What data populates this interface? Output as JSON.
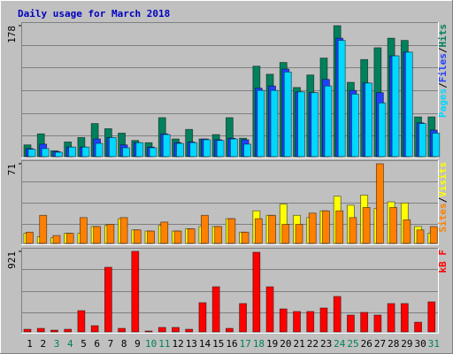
{
  "chart_data": {
    "type": "bar",
    "title": "Daily usage for March 2018",
    "legend_separator": "/",
    "categories": [
      "1",
      "2",
      "3",
      "4",
      "5",
      "6",
      "7",
      "8",
      "9",
      "10",
      "11",
      "12",
      "13",
      "14",
      "15",
      "16",
      "17",
      "18",
      "19",
      "20",
      "21",
      "22",
      "23",
      "24",
      "25",
      "26",
      "27",
      "28",
      "29",
      "30",
      "31"
    ],
    "category_colors": [
      "#000000",
      "#000000",
      "#00805c",
      "#00805c",
      "#000000",
      "#000000",
      "#000000",
      "#000000",
      "#000000",
      "#00805c",
      "#00805c",
      "#000000",
      "#000000",
      "#000000",
      "#000000",
      "#000000",
      "#00805c",
      "#00805c",
      "#000000",
      "#000000",
      "#000000",
      "#000000",
      "#000000",
      "#00805c",
      "#00805c",
      "#000000",
      "#000000",
      "#000000",
      "#000000",
      "#000000",
      "#00805c"
    ],
    "panels": [
      {
        "ylim": [
          0,
          178
        ],
        "yticks": [
          178
        ],
        "series": [
          {
            "name": "Hits",
            "color": "#00805c",
            "values": [
              16,
              31,
              8,
              20,
              26,
              45,
              38,
              32,
              22,
              19,
              53,
              24,
              37,
              24,
              30,
              53,
              25,
              123,
              112,
              128,
              94,
              111,
              134,
              178,
              101,
              132,
              148,
              161,
              158,
              54,
              54
            ]
          },
          {
            "name": "Files",
            "color": "#2040ff",
            "values": [
              11,
              17,
              7,
              13,
              13,
              24,
              26,
              16,
              19,
              13,
              31,
              19,
              20,
              24,
              23,
              25,
              23,
              93,
              96,
              119,
              88,
              87,
              105,
              161,
              90,
              100,
              87,
              137,
              142,
              46,
              36
            ]
          },
          {
            "name": "Pages",
            "color": "#00d8ff",
            "values": [
              10,
              11,
              6,
              13,
              13,
              18,
              26,
              12,
              19,
              12,
              30,
              18,
              19,
              23,
              22,
              24,
              17,
              90,
              90,
              115,
              88,
              87,
              96,
              158,
              85,
              100,
              73,
              137,
              142,
              45,
              32
            ]
          }
        ]
      },
      {
        "ylim": [
          0,
          71
        ],
        "yticks": [
          71
        ],
        "series": [
          {
            "name": "Visits",
            "color": "#ffff00",
            "values": [
              9,
              6,
              5,
              9,
              9,
              15,
              16,
              22,
              12,
              11,
              16,
              11,
              13,
              15,
              15,
              22,
              10,
              29,
              25,
              35,
              25,
              23,
              29,
              42,
              34,
              43,
              31,
              37,
              36,
              15,
              9
            ]
          },
          {
            "name": "Sites",
            "color": "#ff8000",
            "values": [
              10,
              25,
              7,
              9,
              23,
              15,
              17,
              23,
              12,
              11,
              19,
              11,
              13,
              25,
              15,
              22,
              10,
              22,
              25,
              17,
              17,
              27,
              29,
              29,
              23,
              32,
              71,
              32,
              21,
              12,
              15
            ]
          }
        ]
      },
      {
        "ylim": [
          0,
          921
        ],
        "yticks": [
          921
        ],
        "series": [
          {
            "name": "kB F",
            "color": "#ff0000",
            "values": [
              30,
              40,
              20,
              30,
              243,
              71,
              739,
              40,
              921,
              10,
              51,
              51,
              30,
              334,
              516,
              40,
              324,
              911,
              516,
              263,
              233,
              233,
              273,
              405,
              192,
              223,
              192,
              324,
              324,
              111,
              344
            ]
          }
        ]
      }
    ]
  }
}
